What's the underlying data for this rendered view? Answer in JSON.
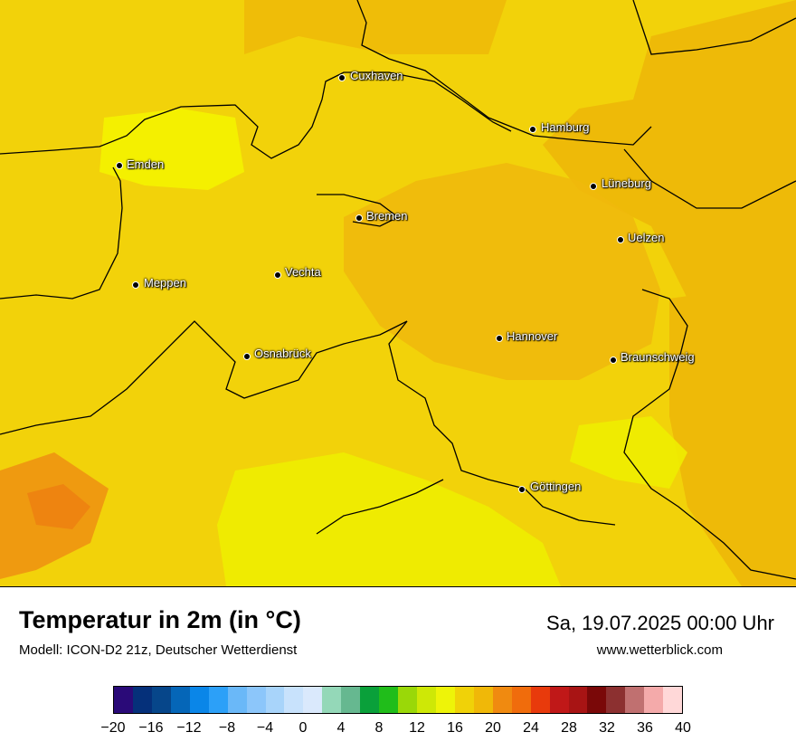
{
  "map": {
    "cities": [
      {
        "name": "Cuxhaven"
      },
      {
        "name": "Hamburg"
      },
      {
        "name": "Emden"
      },
      {
        "name": "Lüneburg"
      },
      {
        "name": "Bremen"
      },
      {
        "name": "Uelzen"
      },
      {
        "name": "Vechta"
      },
      {
        "name": "Meppen"
      },
      {
        "name": "Hannover"
      },
      {
        "name": "Osnabrück"
      },
      {
        "name": "Braunschweig"
      },
      {
        "name": "Göttingen"
      }
    ]
  },
  "header": {
    "title": "Temperatur in 2m (in °C)",
    "subtitle": "Modell: ICON-D2 21z, Deutscher Wetterdienst",
    "datetime": "Sa, 19.07.2025 00:00 Uhr",
    "website": "www.wetterblick.com"
  },
  "legend": {
    "colors": [
      "#2a0a78",
      "#05307a",
      "#06468a",
      "#0566b8",
      "#0a86e8",
      "#2ca0f8",
      "#6ab8f8",
      "#8cc6fa",
      "#a8d4fa",
      "#c8e2fc",
      "#dae9fc",
      "#94d8b8",
      "#66b890",
      "#0aa03a",
      "#20bd1a",
      "#9ad808",
      "#cee806",
      "#eef408",
      "#f0d208",
      "#f0b808",
      "#f08a10",
      "#f06c0c",
      "#e83a0c",
      "#c01818",
      "#a81414",
      "#7a0808",
      "#8c3030",
      "#c07070",
      "#f4aaaa",
      "#ffd8d8"
    ],
    "tick_labels": [
      "−20",
      "−16",
      "−12",
      "−8",
      "−4",
      "0",
      "4",
      "8",
      "12",
      "16",
      "20",
      "24",
      "28",
      "32",
      "36",
      "40"
    ],
    "min": -20,
    "max": 40
  }
}
